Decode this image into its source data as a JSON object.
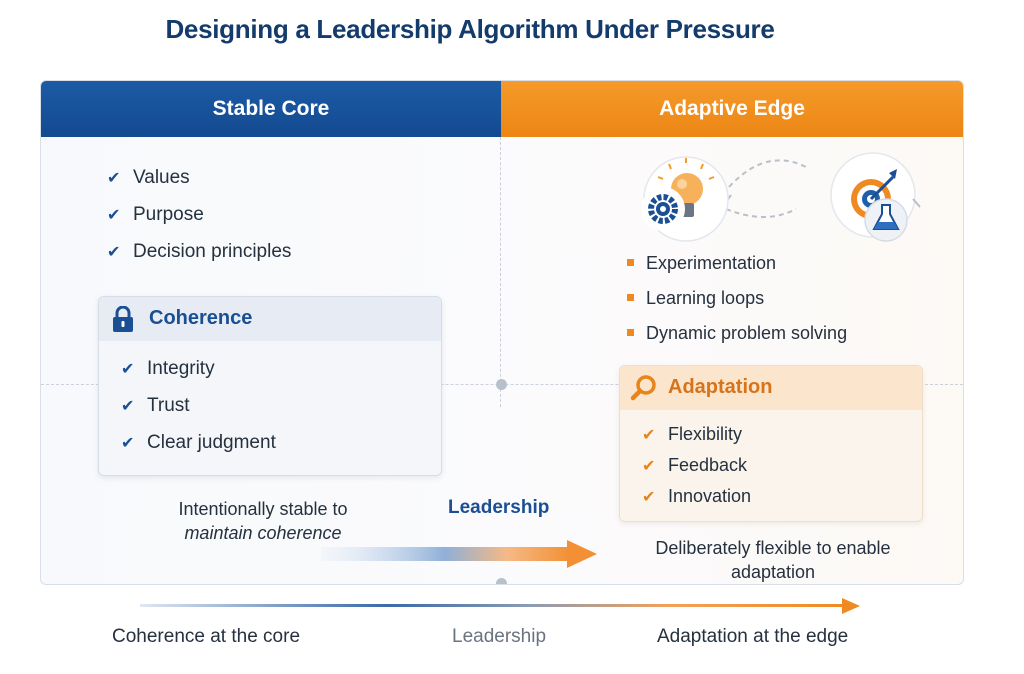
{
  "title": "Designing a Leadership Algorithm Under Pressure",
  "left": {
    "header": "Stable Core",
    "items": [
      "Values",
      "Purpose",
      "Decision principles"
    ],
    "box": {
      "title": "Coherence",
      "icon": "lock-icon",
      "items": [
        "Integrity",
        "Trust",
        "Clear judgment"
      ]
    },
    "caption_line1": "Intentionally stable to",
    "caption_line2": "maintain coherence"
  },
  "right": {
    "header": "Adaptive Edge",
    "icons": [
      "gear-icon",
      "lightbulb-icon",
      "target-icon",
      "flask-icon"
    ],
    "items": [
      "Experimentation",
      "Learning loops",
      "Dynamic problem solving"
    ],
    "box": {
      "title": "Adaptation",
      "icon": "magnifier-icon",
      "items": [
        "Flexibility",
        "Feedback",
        "Innovation"
      ]
    },
    "caption_line1": "Deliberately flexible to enable",
    "caption_line2": "adaptation"
  },
  "middle_label": "Leadership",
  "footer": {
    "left": "Coherence at the core",
    "center": "Leadership",
    "right": "Adaptation at the edge"
  },
  "colors": {
    "blue": "#1a4f94",
    "orange": "#ee8a1d",
    "navy": "#133b6b"
  }
}
